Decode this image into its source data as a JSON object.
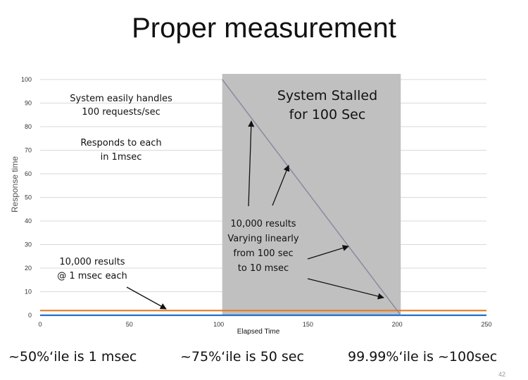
{
  "slide": {
    "title": "Proper measurement",
    "page_number": "42"
  },
  "bottom_notes": [
    "~50%‘ile is 1 msec",
    "~75%‘ile is 50 sec",
    "99.99%‘ile is ~100sec"
  ],
  "annotations": {
    "handles": [
      "System easily handles",
      "100 requests/sec"
    ],
    "responds": [
      "Responds to each",
      "in 1msec"
    ],
    "stalled": [
      "System Stalled",
      "for 100 Sec"
    ],
    "linear": [
      "10,000 results",
      "Varying linearly",
      "from 100 sec",
      "to 10 msec"
    ],
    "fixed": [
      "10,000 results",
      "@ 1 msec each"
    ]
  },
  "chart_data": {
    "type": "line",
    "xlabel": "Elapsed Time",
    "ylabel": "Response time",
    "xlim": [
      0,
      250
    ],
    "ylim": [
      0,
      100
    ],
    "xticks": [
      0,
      50,
      100,
      150,
      200,
      250
    ],
    "yticks": [
      0,
      10,
      20,
      30,
      40,
      50,
      60,
      70,
      80,
      90,
      100
    ],
    "grid": true,
    "legend": "none",
    "stall_region": {
      "x_start": 102,
      "x_end": 202,
      "color": "#c0c0c0"
    },
    "series": [
      {
        "color": "#1f6fd1",
        "x": [
          0,
          250
        ],
        "y": [
          0.001,
          0.001
        ]
      },
      {
        "color": "#e07b2a",
        "x": [
          0,
          250
        ],
        "y": [
          2,
          2
        ]
      },
      {
        "color": "#8a8aa0",
        "x": [
          102,
          202
        ],
        "y": [
          100,
          0.01
        ]
      }
    ]
  }
}
